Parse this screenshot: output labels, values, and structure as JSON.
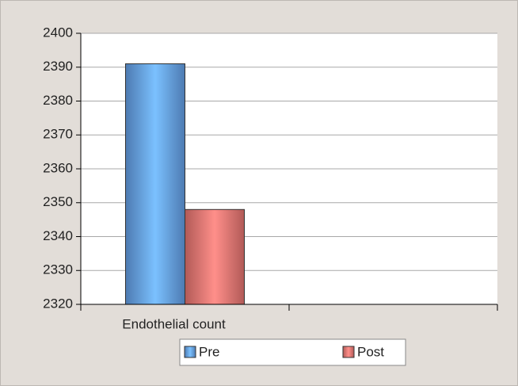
{
  "chart_data": {
    "type": "bar",
    "categories": [
      "Endothelial count",
      null
    ],
    "series": [
      {
        "name": "Pre",
        "color": "#5b8fd0",
        "values": [
          2391,
          null
        ]
      },
      {
        "name": "Post",
        "color": "#d06a66",
        "values": [
          2348,
          null
        ]
      }
    ],
    "ylim": [
      2320,
      2400
    ],
    "yticks": [
      2320,
      2330,
      2340,
      2350,
      2360,
      2370,
      2380,
      2390,
      2400
    ],
    "grid": true,
    "legend": "bottom"
  }
}
